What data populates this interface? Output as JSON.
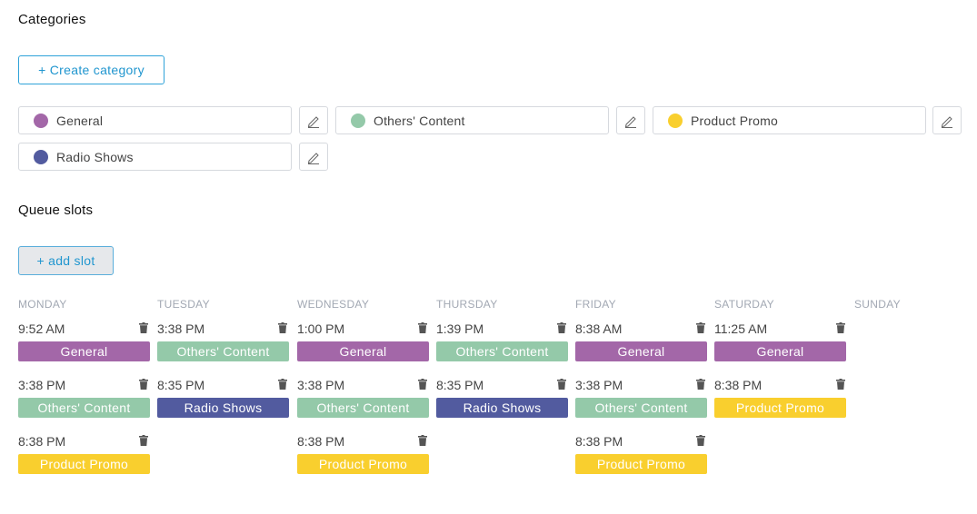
{
  "categories_section": {
    "title": "Categories",
    "create_button": "+ Create category",
    "items": [
      {
        "label": "General",
        "color": "#a367a8"
      },
      {
        "label": "Others' Content",
        "color": "#94c9a9"
      },
      {
        "label": "Product Promo",
        "color": "#f9cf2e"
      },
      {
        "label": "Radio Shows",
        "color": "#525b9f"
      }
    ],
    "edit_icon": "pencil-icon"
  },
  "queue_section": {
    "title": "Queue slots",
    "add_button": "+ add slot",
    "days": [
      "MONDAY",
      "TUESDAY",
      "WEDNESDAY",
      "THURSDAY",
      "FRIDAY",
      "SATURDAY",
      "SUNDAY"
    ],
    "delete_icon": "trash-icon",
    "slots": {
      "monday": [
        {
          "time": "9:52 AM",
          "category": "General"
        },
        {
          "time": "3:38 PM",
          "category": "Others' Content"
        },
        {
          "time": "8:38 PM",
          "category": "Product Promo"
        }
      ],
      "tuesday": [
        {
          "time": "3:38 PM",
          "category": "Others' Content"
        },
        {
          "time": "8:35 PM",
          "category": "Radio Shows"
        }
      ],
      "wednesday": [
        {
          "time": "1:00 PM",
          "category": "General"
        },
        {
          "time": "3:38 PM",
          "category": "Others' Content"
        },
        {
          "time": "8:38 PM",
          "category": "Product Promo"
        }
      ],
      "thursday": [
        {
          "time": "1:39 PM",
          "category": "Others' Content"
        },
        {
          "time": "8:35 PM",
          "category": "Radio Shows"
        }
      ],
      "friday": [
        {
          "time": "8:38 AM",
          "category": "General"
        },
        {
          "time": "3:38 PM",
          "category": "Others' Content"
        },
        {
          "time": "8:38 PM",
          "category": "Product Promo"
        }
      ],
      "saturday": [
        {
          "time": "11:25 AM",
          "category": "General"
        },
        {
          "time": "8:38 PM",
          "category": "Product Promo"
        }
      ],
      "sunday": []
    }
  }
}
